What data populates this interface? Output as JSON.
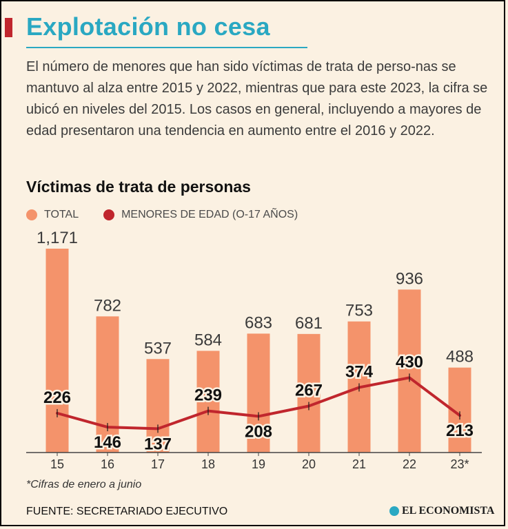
{
  "header": {
    "title": "Explotación no cesa",
    "intro": "El número de menores que han sido víctimas de trata de perso-nas se mantuvo al alza entre 2015 y 2022, mientras que para este 2023, la cifra se ubicó en niveles del 2015. Los casos en general, incluyendo a mayores de edad presentaron una tendencia en aumento entre el 2016 y 2022."
  },
  "colors": {
    "title": "#2aa8c2",
    "accent_bar": "#c0262d",
    "total": "#f4936b",
    "menores": "#c0262d",
    "background": "#fbf1e2"
  },
  "chart_data": {
    "type": "bar",
    "title": "Víctimas de trata de personas",
    "categories": [
      "15",
      "16",
      "17",
      "18",
      "19",
      "20",
      "21",
      "22",
      "23*"
    ],
    "series": [
      {
        "name": "TOTAL",
        "type": "bar",
        "values": [
          1171,
          782,
          537,
          584,
          683,
          681,
          753,
          936,
          488
        ],
        "labels": [
          "1,171",
          "782",
          "537",
          "584",
          "683",
          "681",
          "753",
          "936",
          "488"
        ]
      },
      {
        "name": "MENORES DE EDAD (O-17 AÑOS)",
        "type": "line",
        "values": [
          226,
          146,
          137,
          239,
          208,
          267,
          374,
          430,
          213
        ],
        "labels": [
          "226",
          "146",
          "137",
          "239",
          "208",
          "267",
          "374",
          "430",
          "213"
        ]
      }
    ],
    "ylim": [
      0,
      1171
    ],
    "grid": false,
    "legend": "top-left"
  },
  "footer": {
    "note": "*Cifras de enero a junio",
    "source": "FUENTE: SECRETARIADO EJECUTIVO",
    "brand": "EL ECONOMISTA"
  }
}
